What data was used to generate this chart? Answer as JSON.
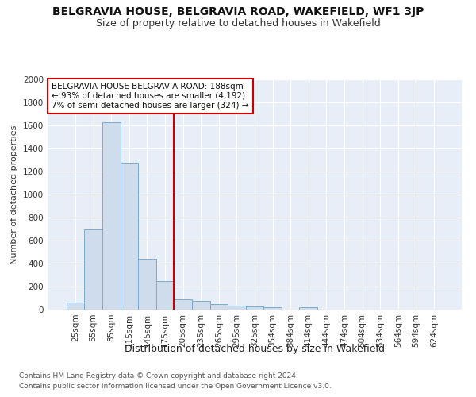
{
  "title": "BELGRAVIA HOUSE, BELGRAVIA ROAD, WAKEFIELD, WF1 3JP",
  "subtitle": "Size of property relative to detached houses in Wakefield",
  "xlabel": "Distribution of detached houses by size in Wakefield",
  "ylabel": "Number of detached properties",
  "footnote1": "Contains HM Land Registry data © Crown copyright and database right 2024.",
  "footnote2": "Contains public sector information licensed under the Open Government Licence v3.0.",
  "annotation_line1": "BELGRAVIA HOUSE BELGRAVIA ROAD: 188sqm",
  "annotation_line2": "← 93% of detached houses are smaller (4,192)",
  "annotation_line3": "7% of semi-detached houses are larger (324) →",
  "bar_labels": [
    "25sqm",
    "55sqm",
    "85sqm",
    "115sqm",
    "145sqm",
    "175sqm",
    "205sqm",
    "235sqm",
    "265sqm",
    "295sqm",
    "325sqm",
    "354sqm",
    "384sqm",
    "414sqm",
    "444sqm",
    "474sqm",
    "504sqm",
    "534sqm",
    "564sqm",
    "594sqm",
    "624sqm"
  ],
  "bar_values": [
    65,
    695,
    1630,
    1275,
    440,
    248,
    90,
    75,
    50,
    35,
    25,
    18,
    0,
    22,
    0,
    0,
    0,
    0,
    0,
    0,
    0
  ],
  "bar_color": "#cfdcec",
  "bar_edge_color": "#7aabcf",
  "vline_x": 5.5,
  "vline_color": "#cc0000",
  "annotation_box_color": "#ffffff",
  "annotation_box_edge": "#cc0000",
  "plot_bg_color": "#e8eef7",
  "fig_bg_color": "#ffffff",
  "ylim": [
    0,
    2000
  ],
  "yticks": [
    0,
    200,
    400,
    600,
    800,
    1000,
    1200,
    1400,
    1600,
    1800,
    2000
  ],
  "title_fontsize": 10,
  "subtitle_fontsize": 9,
  "ylabel_fontsize": 8,
  "xlabel_fontsize": 9,
  "tick_fontsize": 7.5,
  "annotation_fontsize": 7.5,
  "footnote_fontsize": 6.5
}
